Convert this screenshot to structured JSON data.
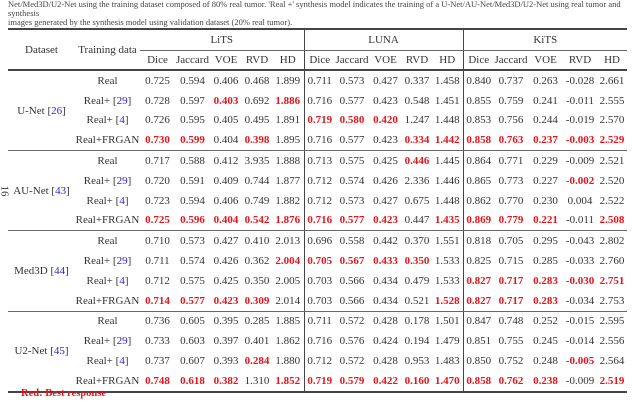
{
  "caption": {
    "line1": "Net/Med3D/U2-Net using the training dataset composed of 80% real tumor. 'Real +' synthesis model indicates the training of a U-Net/AU-Net/Med3D/U2-Net using real tumor and synthesis",
    "line2": "images generated by the synthesis model using validation dataset (20% real tumor)."
  },
  "page_number": "16",
  "header": {
    "dataset": "Dataset",
    "training_data": "Training data",
    "groups": [
      "LiTS",
      "LUNA",
      "KiTS"
    ],
    "metrics": [
      "Dice",
      "Jaccard",
      "VOE",
      "RVD",
      "HD"
    ]
  },
  "best_color": "#e8141b",
  "models": [
    {
      "name": "U-Net",
      "ref": "26",
      "rows": [
        {
          "training": "Real",
          "ref": "",
          "values": [
            "0.725",
            "0.594",
            "0.406",
            "0.468",
            "1.899",
            "0.711",
            "0.573",
            "0.427",
            "0.337",
            "1.458",
            "0.840",
            "0.737",
            "0.263",
            "-0.028",
            "2.661"
          ],
          "best": []
        },
        {
          "training": "Real+",
          "ref": "29",
          "values": [
            "0.728",
            "0.597",
            "0.403",
            "0.692",
            "1.886",
            "0.716",
            "0.577",
            "0.423",
            "0.548",
            "1.451",
            "0.855",
            "0.759",
            "0.241",
            "-0.011",
            "2.555"
          ],
          "best": [
            2,
            4
          ]
        },
        {
          "training": "Real+",
          "ref": "4",
          "values": [
            "0.726",
            "0.595",
            "0.405",
            "0.495",
            "1.891",
            "0.719",
            "0.580",
            "0.420",
            "1.247",
            "1.448",
            "0.853",
            "0.756",
            "0.244",
            "-0.019",
            "2.570"
          ],
          "best": [
            5,
            6,
            7
          ]
        },
        {
          "training": "Real+FRGAN",
          "ref": "",
          "values": [
            "0.730",
            "0.599",
            "0.404",
            "0.398",
            "1.895",
            "0.716",
            "0.577",
            "0.423",
            "0.334",
            "1.442",
            "0.858",
            "0.763",
            "0.237",
            "-0.003",
            "2.529"
          ],
          "best": [
            0,
            1,
            3,
            8,
            9,
            10,
            11,
            12,
            13,
            14
          ]
        }
      ]
    },
    {
      "name": "AU-Net",
      "ref": "43",
      "rows": [
        {
          "training": "Real",
          "ref": "",
          "values": [
            "0.717",
            "0.588",
            "0.412",
            "3.935",
            "1.888",
            "0.713",
            "0.575",
            "0.425",
            "0.446",
            "1.445",
            "0.864",
            "0.771",
            "0.229",
            "-0.009",
            "2.521"
          ],
          "best": [
            8
          ]
        },
        {
          "training": "Real+",
          "ref": "29",
          "values": [
            "0.720",
            "0.591",
            "0.409",
            "0.744",
            "1.877",
            "0.712",
            "0.574",
            "0.426",
            "2.336",
            "1.446",
            "0.865",
            "0.773",
            "0.227",
            "-0.002",
            "2.520"
          ],
          "best": [
            13
          ]
        },
        {
          "training": "Real+",
          "ref": "4",
          "values": [
            "0.723",
            "0.594",
            "0.406",
            "0.749",
            "1.882",
            "0.712",
            "0.573",
            "0.427",
            "0.675",
            "1.448",
            "0.862",
            "0.770",
            "0.230",
            "0.004",
            "2.522"
          ],
          "best": []
        },
        {
          "training": "Real+FRGAN",
          "ref": "",
          "values": [
            "0.725",
            "0.596",
            "0.404",
            "0.542",
            "1.876",
            "0.716",
            "0.577",
            "0.423",
            "0.447",
            "1.435",
            "0.869",
            "0.779",
            "0.221",
            "-0.011",
            "2.508"
          ],
          "best": [
            0,
            1,
            2,
            3,
            4,
            5,
            6,
            7,
            9,
            10,
            11,
            12,
            14
          ]
        }
      ]
    },
    {
      "name": "Med3D",
      "ref": "44",
      "rows": [
        {
          "training": "Real",
          "ref": "",
          "values": [
            "0.710",
            "0.573",
            "0.427",
            "0.410",
            "2.013",
            "0.696",
            "0.558",
            "0.442",
            "0.370",
            "1.551",
            "0.818",
            "0.705",
            "0.295",
            "-0.043",
            "2.802"
          ],
          "best": []
        },
        {
          "training": "Real+",
          "ref": "29",
          "values": [
            "0.711",
            "0.574",
            "0.426",
            "0.362",
            "2.004",
            "0.705",
            "0.567",
            "0.433",
            "0.350",
            "1.533",
            "0.825",
            "0.715",
            "0.285",
            "-0.033",
            "2.760"
          ],
          "best": [
            4,
            5,
            6,
            7,
            8
          ]
        },
        {
          "training": "Real+",
          "ref": "4",
          "values": [
            "0.712",
            "0.575",
            "0.425",
            "0.350",
            "2.005",
            "0.703",
            "0.566",
            "0.434",
            "0.479",
            "1.533",
            "0.827",
            "0.717",
            "0.283",
            "-0.030",
            "2.751"
          ],
          "best": [
            10,
            11,
            12,
            13,
            14
          ]
        },
        {
          "training": "Real+FRGAN",
          "ref": "",
          "values": [
            "0.714",
            "0.577",
            "0.423",
            "0.309",
            "2.014",
            "0.703",
            "0.566",
            "0.434",
            "0.521",
            "1.528",
            "0.827",
            "0.717",
            "0.283",
            "-0.034",
            "2.753"
          ],
          "best": [
            0,
            1,
            2,
            3,
            9,
            10,
            11,
            12
          ]
        }
      ]
    },
    {
      "name": "U2-Net",
      "ref": "45",
      "rows": [
        {
          "training": "Real",
          "ref": "",
          "values": [
            "0.736",
            "0.605",
            "0.395",
            "0.285",
            "1.885",
            "0.711",
            "0.572",
            "0.428",
            "0.178",
            "1.501",
            "0.847",
            "0.748",
            "0.252",
            "-0.015",
            "2.595"
          ],
          "best": []
        },
        {
          "training": "Real+",
          "ref": "29",
          "values": [
            "0.733",
            "0.603",
            "0.397",
            "0.401",
            "1.862",
            "0.716",
            "0.576",
            "0.424",
            "0.194",
            "1.479",
            "0.851",
            "0.755",
            "0.245",
            "-0.014",
            "2.556"
          ],
          "best": []
        },
        {
          "training": "Real+",
          "ref": "4",
          "values": [
            "0.737",
            "0.607",
            "0.393",
            "0.284",
            "1.880",
            "0.712",
            "0.572",
            "0.428",
            "0.953",
            "1.483",
            "0.850",
            "0.752",
            "0.248",
            "-0.005",
            "2.564"
          ],
          "best": [
            3,
            13
          ]
        },
        {
          "training": "Real+FRGAN",
          "ref": "",
          "values": [
            "0.748",
            "0.618",
            "0.382",
            "1.310",
            "1.852",
            "0.719",
            "0.579",
            "0.422",
            "0.160",
            "1.470",
            "0.858",
            "0.762",
            "0.238",
            "-0.009",
            "2.519"
          ],
          "best": [
            0,
            1,
            2,
            4,
            5,
            6,
            7,
            8,
            9,
            10,
            11,
            12,
            14
          ]
        }
      ]
    }
  ],
  "legend": "Red: Best response"
}
